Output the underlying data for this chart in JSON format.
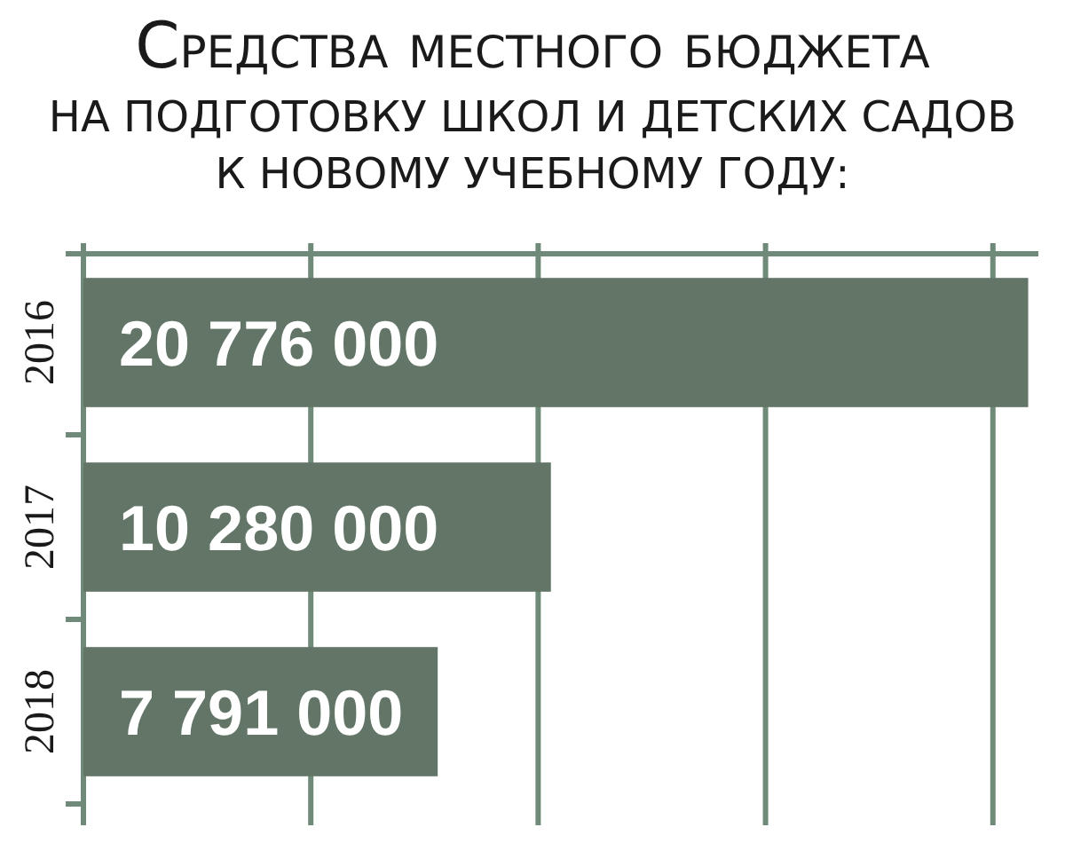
{
  "chart_data": {
    "type": "bar",
    "orientation": "horizontal",
    "title": "Средства местного бюджета",
    "subtitle": "НА ПОДГОТОВКУ ШКОЛ И ДЕТСКИХ САДОВ\nК НОВОМУ УЧЕБНОМУ ГОДУ:",
    "categories": [
      "2016",
      "2017",
      "2018"
    ],
    "values": [
      20776000,
      10280000,
      7791000
    ],
    "value_labels": [
      "20 776 000",
      "10 280 000",
      "7 791 000"
    ],
    "color": "#627567",
    "xlim": [
      0,
      21000000
    ],
    "xticks": [
      {
        "value": 0,
        "label": null
      },
      {
        "value": 5000000,
        "label": null
      },
      {
        "value": 10000000,
        "label": null
      },
      {
        "value": 15000000,
        "label": null
      },
      {
        "value": 20000000,
        "label": null
      }
    ],
    "grid": "x",
    "tick_labels": "y"
  }
}
